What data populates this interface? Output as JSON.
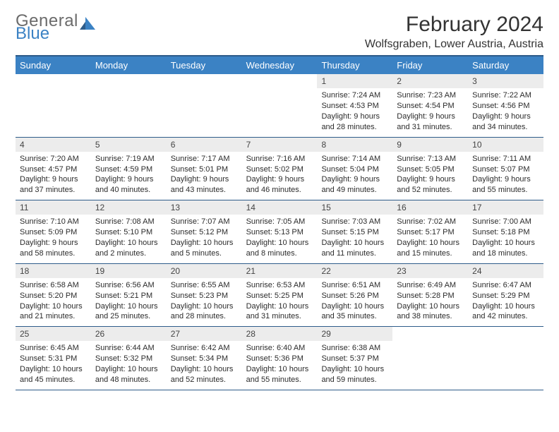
{
  "brand": {
    "line1": "General",
    "line2": "Blue"
  },
  "title": "February 2024",
  "location": "Wolfsgraben, Lower Austria, Austria",
  "day_headers": [
    "Sunday",
    "Monday",
    "Tuesday",
    "Wednesday",
    "Thursday",
    "Friday",
    "Saturday"
  ],
  "colors": {
    "header_bg": "#3b82c4",
    "header_text": "#ffffff",
    "divider": "#2e5c8a",
    "daynum_bg": "#ececec",
    "body_text": "#2c2c2c",
    "logo_gray": "#6b6b6b",
    "logo_blue": "#3b82c4"
  },
  "typography": {
    "title_fontsize": 30,
    "location_fontsize": 16,
    "dayheader_fontsize": 13,
    "cell_fontsize": 11
  },
  "layout": {
    "columns": 7,
    "rows": 5,
    "first_day_column": 4
  },
  "weeks": [
    [
      null,
      null,
      null,
      null,
      {
        "n": "1",
        "sr": "7:24 AM",
        "ss": "4:53 PM",
        "dl": "9 hours and 28 minutes."
      },
      {
        "n": "2",
        "sr": "7:23 AM",
        "ss": "4:54 PM",
        "dl": "9 hours and 31 minutes."
      },
      {
        "n": "3",
        "sr": "7:22 AM",
        "ss": "4:56 PM",
        "dl": "9 hours and 34 minutes."
      }
    ],
    [
      {
        "n": "4",
        "sr": "7:20 AM",
        "ss": "4:57 PM",
        "dl": "9 hours and 37 minutes."
      },
      {
        "n": "5",
        "sr": "7:19 AM",
        "ss": "4:59 PM",
        "dl": "9 hours and 40 minutes."
      },
      {
        "n": "6",
        "sr": "7:17 AM",
        "ss": "5:01 PM",
        "dl": "9 hours and 43 minutes."
      },
      {
        "n": "7",
        "sr": "7:16 AM",
        "ss": "5:02 PM",
        "dl": "9 hours and 46 minutes."
      },
      {
        "n": "8",
        "sr": "7:14 AM",
        "ss": "5:04 PM",
        "dl": "9 hours and 49 minutes."
      },
      {
        "n": "9",
        "sr": "7:13 AM",
        "ss": "5:05 PM",
        "dl": "9 hours and 52 minutes."
      },
      {
        "n": "10",
        "sr": "7:11 AM",
        "ss": "5:07 PM",
        "dl": "9 hours and 55 minutes."
      }
    ],
    [
      {
        "n": "11",
        "sr": "7:10 AM",
        "ss": "5:09 PM",
        "dl": "9 hours and 58 minutes."
      },
      {
        "n": "12",
        "sr": "7:08 AM",
        "ss": "5:10 PM",
        "dl": "10 hours and 2 minutes."
      },
      {
        "n": "13",
        "sr": "7:07 AM",
        "ss": "5:12 PM",
        "dl": "10 hours and 5 minutes."
      },
      {
        "n": "14",
        "sr": "7:05 AM",
        "ss": "5:13 PM",
        "dl": "10 hours and 8 minutes."
      },
      {
        "n": "15",
        "sr": "7:03 AM",
        "ss": "5:15 PM",
        "dl": "10 hours and 11 minutes."
      },
      {
        "n": "16",
        "sr": "7:02 AM",
        "ss": "5:17 PM",
        "dl": "10 hours and 15 minutes."
      },
      {
        "n": "17",
        "sr": "7:00 AM",
        "ss": "5:18 PM",
        "dl": "10 hours and 18 minutes."
      }
    ],
    [
      {
        "n": "18",
        "sr": "6:58 AM",
        "ss": "5:20 PM",
        "dl": "10 hours and 21 minutes."
      },
      {
        "n": "19",
        "sr": "6:56 AM",
        "ss": "5:21 PM",
        "dl": "10 hours and 25 minutes."
      },
      {
        "n": "20",
        "sr": "6:55 AM",
        "ss": "5:23 PM",
        "dl": "10 hours and 28 minutes."
      },
      {
        "n": "21",
        "sr": "6:53 AM",
        "ss": "5:25 PM",
        "dl": "10 hours and 31 minutes."
      },
      {
        "n": "22",
        "sr": "6:51 AM",
        "ss": "5:26 PM",
        "dl": "10 hours and 35 minutes."
      },
      {
        "n": "23",
        "sr": "6:49 AM",
        "ss": "5:28 PM",
        "dl": "10 hours and 38 minutes."
      },
      {
        "n": "24",
        "sr": "6:47 AM",
        "ss": "5:29 PM",
        "dl": "10 hours and 42 minutes."
      }
    ],
    [
      {
        "n": "25",
        "sr": "6:45 AM",
        "ss": "5:31 PM",
        "dl": "10 hours and 45 minutes."
      },
      {
        "n": "26",
        "sr": "6:44 AM",
        "ss": "5:32 PM",
        "dl": "10 hours and 48 minutes."
      },
      {
        "n": "27",
        "sr": "6:42 AM",
        "ss": "5:34 PM",
        "dl": "10 hours and 52 minutes."
      },
      {
        "n": "28",
        "sr": "6:40 AM",
        "ss": "5:36 PM",
        "dl": "10 hours and 55 minutes."
      },
      {
        "n": "29",
        "sr": "6:38 AM",
        "ss": "5:37 PM",
        "dl": "10 hours and 59 minutes."
      },
      null,
      null
    ]
  ],
  "labels": {
    "sunrise": "Sunrise: ",
    "sunset": "Sunset: ",
    "daylight": "Daylight: "
  }
}
